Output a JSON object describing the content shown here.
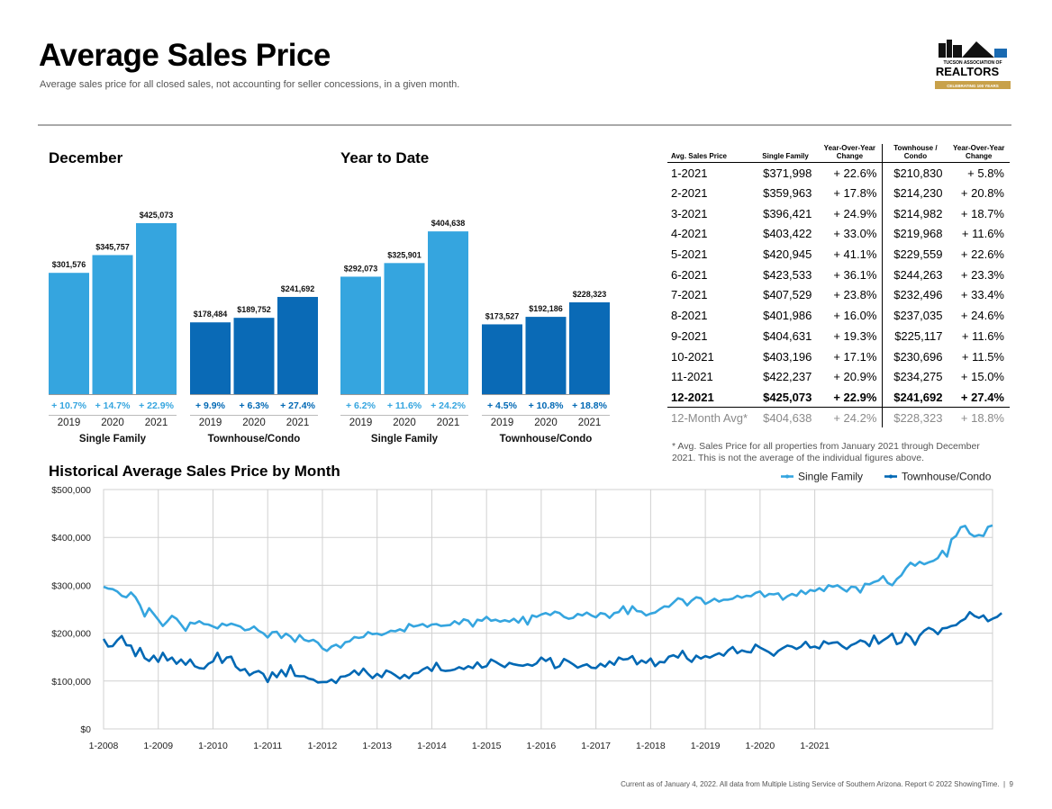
{
  "header": {
    "title": "Average Sales Price",
    "subtitle": "Average sales price for all closed sales, not accounting for seller concessions, in a given month.",
    "logo_line1": "TUCSON ASSOCIATION OF",
    "logo_line2": "REALTORS",
    "logo_line3": "CELEBRATING 100 YEARS"
  },
  "colors": {
    "single_family": "#35a5df",
    "townhouse": "#0068b4",
    "townhouse_bar": "#0a6ab6"
  },
  "chart_data": [
    {
      "type": "bar",
      "title": "December",
      "groups": [
        {
          "name": "Single Family",
          "categories": [
            "2019",
            "2020",
            "2021"
          ],
          "values": [
            301576,
            345757,
            425073
          ],
          "labels": [
            "$301,576",
            "$345,757",
            "$425,073"
          ],
          "changes": [
            "+ 10.7%",
            "+ 14.7%",
            "+ 22.9%"
          ]
        },
        {
          "name": "Townhouse/Condo",
          "categories": [
            "2019",
            "2020",
            "2021"
          ],
          "values": [
            178484,
            189752,
            241692
          ],
          "labels": [
            "$178,484",
            "$189,752",
            "$241,692"
          ],
          "changes": [
            "+ 9.9%",
            "+ 6.3%",
            "+ 27.4%"
          ]
        }
      ]
    },
    {
      "type": "bar",
      "title": "Year to Date",
      "groups": [
        {
          "name": "Single Family",
          "categories": [
            "2019",
            "2020",
            "2021"
          ],
          "values": [
            292073,
            325901,
            404638
          ],
          "labels": [
            "$292,073",
            "$325,901",
            "$404,638"
          ],
          "changes": [
            "+ 6.2%",
            "+ 11.6%",
            "+ 24.2%"
          ]
        },
        {
          "name": "Townhouse/Condo",
          "categories": [
            "2019",
            "2020",
            "2021"
          ],
          "values": [
            173527,
            192186,
            228323
          ],
          "labels": [
            "$173,527",
            "$192,186",
            "$228,323"
          ],
          "changes": [
            "+ 4.5%",
            "+ 10.8%",
            "+ 18.8%"
          ]
        }
      ]
    },
    {
      "type": "table",
      "columns": [
        "Avg. Sales Price",
        "Single Family",
        "Year-Over-Year Change",
        "Townhouse / Condo",
        "Year-Over-Year Change"
      ],
      "rows": [
        [
          "1-2021",
          "$371,998",
          "+ 22.6%",
          "$210,830",
          "+ 5.8%"
        ],
        [
          "2-2021",
          "$359,963",
          "+ 17.8%",
          "$214,230",
          "+ 20.8%"
        ],
        [
          "3-2021",
          "$396,421",
          "+ 24.9%",
          "$214,982",
          "+ 18.7%"
        ],
        [
          "4-2021",
          "$403,422",
          "+ 33.0%",
          "$219,968",
          "+ 11.6%"
        ],
        [
          "5-2021",
          "$420,945",
          "+ 41.1%",
          "$229,559",
          "+ 22.6%"
        ],
        [
          "6-2021",
          "$423,533",
          "+ 36.1%",
          "$244,263",
          "+ 23.3%"
        ],
        [
          "7-2021",
          "$407,529",
          "+ 23.8%",
          "$232,496",
          "+ 33.4%"
        ],
        [
          "8-2021",
          "$401,986",
          "+ 16.0%",
          "$237,035",
          "+ 24.6%"
        ],
        [
          "9-2021",
          "$404,631",
          "+ 19.3%",
          "$225,117",
          "+ 11.6%"
        ],
        [
          "10-2021",
          "$403,196",
          "+ 17.1%",
          "$230,696",
          "+ 11.5%"
        ],
        [
          "11-2021",
          "$422,237",
          "+ 20.9%",
          "$234,275",
          "+ 15.0%"
        ],
        [
          "12-2021",
          "$425,073",
          "+ 22.9%",
          "$241,692",
          "+ 27.4%"
        ]
      ],
      "summary": [
        "12-Month Avg*",
        "$404,638",
        "+ 24.2%",
        "$228,323",
        "+ 18.8%"
      ],
      "note": "* Avg. Sales Price for all properties from January 2021 through December 2021. This is not the average of the individual figures above."
    },
    {
      "type": "line",
      "title": "Historical Average Sales Price by Month",
      "ylim": [
        0,
        500000
      ],
      "yticks": [
        0,
        100000,
        200000,
        300000,
        400000,
        500000
      ],
      "ytick_labels": [
        "$0",
        "$100,000",
        "$200,000",
        "$300,000",
        "$400,000",
        "$500,000"
      ],
      "xtick_labels": [
        "1-2008",
        "1-2009",
        "1-2010",
        "1-2011",
        "1-2012",
        "1-2013",
        "1-2014",
        "1-2015",
        "1-2016",
        "1-2017",
        "1-2018",
        "1-2019",
        "1-2020",
        "1-2021"
      ],
      "legend": "top-right",
      "grid": true,
      "x_start": "1-2008",
      "x_end": "12-2021",
      "series": [
        {
          "name": "Single Family",
          "values": [
            297000,
            293000,
            292000,
            287000,
            278000,
            275000,
            285000,
            275000,
            258000,
            235000,
            252000,
            240000,
            228000,
            215000,
            225000,
            236000,
            230000,
            218000,
            205000,
            222000,
            220000,
            225000,
            219000,
            218000,
            214000,
            210000,
            220000,
            216000,
            220000,
            217000,
            214000,
            206000,
            208000,
            214000,
            205000,
            200000,
            191000,
            202000,
            203000,
            190000,
            199000,
            193000,
            182000,
            196000,
            186000,
            183000,
            186000,
            180000,
            168000,
            163000,
            172000,
            176000,
            170000,
            181000,
            183000,
            192000,
            190000,
            192000,
            202000,
            198000,
            199000,
            196000,
            200000,
            205000,
            204000,
            208000,
            204000,
            219000,
            214000,
            216000,
            219000,
            213000,
            218000,
            219000,
            215000,
            216000,
            217000,
            225000,
            219000,
            229000,
            226000,
            214000,
            228000,
            226000,
            234000,
            226000,
            228000,
            224000,
            227000,
            224000,
            230000,
            222000,
            234000,
            218000,
            237000,
            234000,
            239000,
            242000,
            238000,
            245000,
            242000,
            234000,
            230000,
            232000,
            240000,
            237000,
            243000,
            237000,
            233000,
            242000,
            240000,
            232000,
            242000,
            244000,
            256000,
            240000,
            256000,
            246000,
            245000,
            237000,
            241000,
            243000,
            250000,
            256000,
            255000,
            264000,
            273000,
            270000,
            258000,
            268000,
            275000,
            273000,
            261000,
            266000,
            272000,
            266000,
            270000,
            270000,
            272000,
            278000,
            274000,
            278000,
            277000,
            284000,
            287000,
            276000,
            282000,
            281000,
            283000,
            270000,
            277000,
            282000,
            278000,
            289000,
            282000,
            290000,
            288000,
            294000,
            288000,
            300000,
            297000,
            300000,
            293000,
            287000,
            297000,
            296000,
            285000,
            303000,
            302000,
            307000,
            310000,
            319000,
            305000,
            300000,
            313000,
            321000,
            336000,
            347000,
            341000,
            349000,
            344000,
            348000,
            351000,
            357000,
            372000,
            360000,
            396000,
            403000,
            421000,
            424000,
            408000,
            402000,
            405000,
            403000,
            422000,
            425000
          ]
        },
        {
          "name": "Townhouse/Condo",
          "values": [
            188000,
            172000,
            173000,
            185000,
            194000,
            175000,
            174000,
            152000,
            169000,
            148000,
            142000,
            153000,
            140000,
            159000,
            143000,
            149000,
            136000,
            145000,
            134000,
            145000,
            131000,
            127000,
            126000,
            136000,
            141000,
            159000,
            138000,
            149000,
            151000,
            130000,
            122000,
            125000,
            112000,
            118000,
            121000,
            115000,
            98000,
            118000,
            108000,
            123000,
            110000,
            133000,
            111000,
            110000,
            110000,
            105000,
            103000,
            97000,
            98000,
            98000,
            103000,
            96000,
            109000,
            110000,
            114000,
            122000,
            113000,
            126000,
            115000,
            106000,
            115000,
            108000,
            122000,
            118000,
            112000,
            105000,
            113000,
            106000,
            116000,
            117000,
            124000,
            129000,
            121000,
            138000,
            123000,
            121000,
            122000,
            124000,
            129000,
            125000,
            131000,
            127000,
            139000,
            128000,
            131000,
            145000,
            140000,
            134000,
            129000,
            138000,
            135000,
            133000,
            132000,
            135000,
            132000,
            137000,
            149000,
            142000,
            148000,
            127000,
            131000,
            146000,
            141000,
            135000,
            128000,
            132000,
            135000,
            128000,
            127000,
            136000,
            130000,
            141000,
            134000,
            149000,
            145000,
            146000,
            152000,
            135000,
            143000,
            138000,
            147000,
            131000,
            140000,
            139000,
            151000,
            154000,
            149000,
            163000,
            147000,
            140000,
            153000,
            147000,
            152000,
            149000,
            154000,
            158000,
            153000,
            164000,
            171000,
            158000,
            164000,
            161000,
            160000,
            176000,
            170000,
            165000,
            160000,
            153000,
            163000,
            169000,
            174000,
            172000,
            167000,
            172000,
            182000,
            170000,
            172000,
            168000,
            183000,
            178000,
            180000,
            181000,
            173000,
            167000,
            175000,
            179000,
            185000,
            182000,
            173000,
            195000,
            178000,
            185000,
            191000,
            199000,
            177000,
            181000,
            200000,
            192000,
            176000,
            195000,
            205000,
            211000,
            207000,
            198000,
            210000,
            211000,
            215000,
            217000,
            225000,
            230000,
            244000,
            236000,
            232000,
            237000,
            225000,
            230000,
            234000,
            242000
          ]
        }
      ]
    }
  ],
  "bar_axis_labels": {
    "years": [
      "2019",
      "2020",
      "2021"
    ],
    "single_family": "Single Family",
    "townhouse": "Townhouse/Condo"
  },
  "footer": {
    "text": "Current as of January 4, 2022. All data from Multiple Listing Service of Southern Arizona. Report © 2022 ShowingTime.",
    "page": "9"
  }
}
